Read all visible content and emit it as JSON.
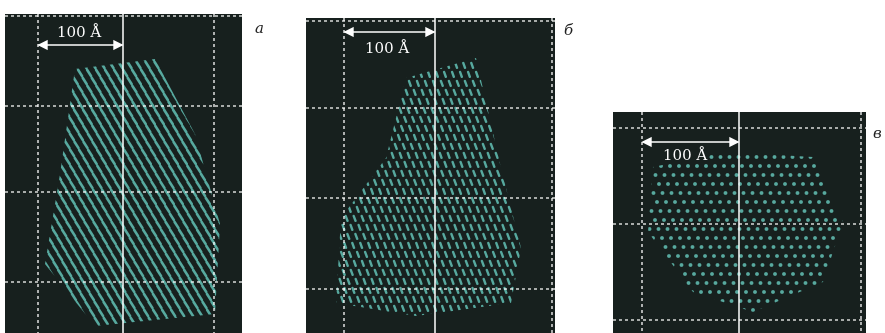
{
  "panels": [
    {
      "letter": "а",
      "scale_label": "100 Å"
    },
    {
      "letter": "б",
      "scale_label": "100 Å"
    },
    {
      "letter": "в",
      "scale_label": "100 Å"
    }
  ],
  "colors": {
    "background": "#17201e",
    "atom_color": "#5fb8ad",
    "grid_line": "#ffffff",
    "letter_color": "#222222"
  }
}
